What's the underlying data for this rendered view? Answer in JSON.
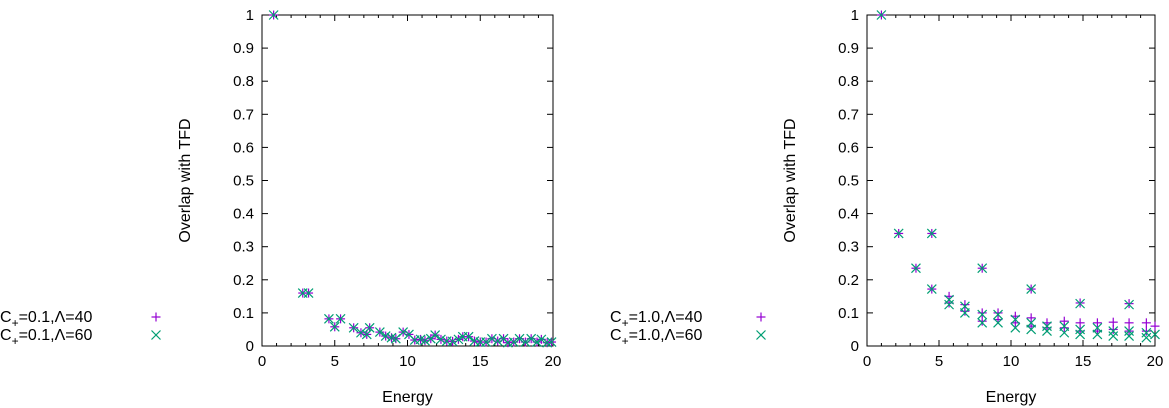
{
  "colors": {
    "series1": "#9400d3",
    "series2": "#009e73",
    "overlap": "#3a6f9c",
    "axis": "#000000"
  },
  "chart_data": [
    {
      "type": "scatter",
      "xlabel": "Energy",
      "ylabel": "Overlap with TFD",
      "xlim": [
        0,
        20
      ],
      "ylim": [
        0,
        1
      ],
      "xticks": [
        "0",
        "5",
        "10",
        "15",
        "20"
      ],
      "yticks": [
        "0",
        "0.1",
        "0.2",
        "0.3",
        "0.4",
        "0.5",
        "0.6",
        "0.7",
        "0.8",
        "0.9",
        "1"
      ],
      "legend_position": "left-bottom",
      "series": [
        {
          "name": "C+=0.1,Λ=40",
          "name_parts": {
            "base": "C",
            "sub": "+",
            "rest": "=0.1,Λ=40"
          },
          "marker": "plus",
          "points": [
            [
              0.8,
              1.0
            ],
            [
              2.8,
              0.16
            ],
            [
              3.2,
              0.16
            ],
            [
              4.6,
              0.082
            ],
            [
              5,
              0.058
            ],
            [
              5.4,
              0.082
            ],
            [
              6.3,
              0.055
            ],
            [
              6.8,
              0.04
            ],
            [
              7.2,
              0.035
            ],
            [
              7.4,
              0.055
            ],
            [
              8.1,
              0.042
            ],
            [
              8.5,
              0.03
            ],
            [
              8.9,
              0.025
            ],
            [
              9.2,
              0.022
            ],
            [
              9.7,
              0.042
            ],
            [
              10.1,
              0.035
            ],
            [
              10.5,
              0.018
            ],
            [
              10.9,
              0.02
            ],
            [
              11.2,
              0.016
            ],
            [
              11.6,
              0.022
            ],
            [
              11.9,
              0.033
            ],
            [
              12.3,
              0.02
            ],
            [
              12.7,
              0.015
            ],
            [
              13.1,
              0.014
            ],
            [
              13.5,
              0.02
            ],
            [
              13.8,
              0.028
            ],
            [
              14.2,
              0.028
            ],
            [
              14.6,
              0.015
            ],
            [
              15,
              0.012
            ],
            [
              15.4,
              0.012
            ],
            [
              15.8,
              0.022
            ],
            [
              16.2,
              0.015
            ],
            [
              16.6,
              0.022
            ],
            [
              16.9,
              0.01
            ],
            [
              17.3,
              0.012
            ],
            [
              17.7,
              0.022
            ],
            [
              18.1,
              0.012
            ],
            [
              18.5,
              0.022
            ],
            [
              18.9,
              0.012
            ],
            [
              19.2,
              0.02
            ],
            [
              19.6,
              0.01
            ],
            [
              19.9,
              0.012
            ]
          ]
        },
        {
          "name": "C+=0.1,Λ=60",
          "name_parts": {
            "base": "C",
            "sub": "+",
            "rest": "=0.1,Λ=60"
          },
          "marker": "cross",
          "points": [
            [
              0.8,
              1.0
            ],
            [
              2.8,
              0.16
            ],
            [
              3.2,
              0.16
            ],
            [
              4.6,
              0.082
            ],
            [
              5,
              0.058
            ],
            [
              5.4,
              0.082
            ],
            [
              6.3,
              0.055
            ],
            [
              6.8,
              0.04
            ],
            [
              7.2,
              0.035
            ],
            [
              7.4,
              0.055
            ],
            [
              8.1,
              0.042
            ],
            [
              8.5,
              0.03
            ],
            [
              8.9,
              0.025
            ],
            [
              9.2,
              0.022
            ],
            [
              9.7,
              0.042
            ],
            [
              10.1,
              0.035
            ],
            [
              10.5,
              0.018
            ],
            [
              10.9,
              0.02
            ],
            [
              11.2,
              0.016
            ],
            [
              11.6,
              0.022
            ],
            [
              11.9,
              0.033
            ],
            [
              12.3,
              0.02
            ],
            [
              12.7,
              0.015
            ],
            [
              13.1,
              0.014
            ],
            [
              13.5,
              0.02
            ],
            [
              13.8,
              0.028
            ],
            [
              14.2,
              0.028
            ],
            [
              14.6,
              0.015
            ],
            [
              15,
              0.012
            ],
            [
              15.4,
              0.012
            ],
            [
              15.8,
              0.022
            ],
            [
              16.2,
              0.015
            ],
            [
              16.6,
              0.022
            ],
            [
              16.9,
              0.01
            ],
            [
              17.3,
              0.012
            ],
            [
              17.7,
              0.022
            ],
            [
              18.1,
              0.012
            ],
            [
              18.5,
              0.022
            ],
            [
              18.9,
              0.012
            ],
            [
              19.2,
              0.02
            ],
            [
              19.6,
              0.01
            ],
            [
              19.9,
              0.012
            ]
          ]
        }
      ]
    },
    {
      "type": "scatter",
      "xlabel": "Energy",
      "ylabel": "Overlap with TFD",
      "xlim": [
        0,
        20
      ],
      "ylim": [
        0,
        1
      ],
      "xticks": [
        "0",
        "5",
        "10",
        "15",
        "20"
      ],
      "yticks": [
        "0",
        "0.1",
        "0.2",
        "0.3",
        "0.4",
        "0.5",
        "0.6",
        "0.7",
        "0.8",
        "0.9",
        "1"
      ],
      "legend_position": "left-bottom",
      "series": [
        {
          "name": "C+=1.0,Λ=40",
          "name_parts": {
            "base": "C",
            "sub": "+",
            "rest": "=1.0,Λ=40"
          },
          "marker": "plus",
          "points": [
            [
              1,
              1.0
            ],
            [
              2.2,
              0.34
            ],
            [
              3.4,
              0.235
            ],
            [
              4.5,
              0.34
            ],
            [
              4.5,
              0.172
            ],
            [
              5.7,
              0.15
            ],
            [
              5.7,
              0.13
            ],
            [
              6.8,
              0.125
            ],
            [
              6.8,
              0.105
            ],
            [
              8,
              0.235
            ],
            [
              8,
              0.1
            ],
            [
              8,
              0.075
            ],
            [
              9.1,
              0.1
            ],
            [
              9.1,
              0.08
            ],
            [
              10.3,
              0.09
            ],
            [
              10.3,
              0.07
            ],
            [
              11.4,
              0.172
            ],
            [
              11.4,
              0.085
            ],
            [
              11.4,
              0.06
            ],
            [
              12.5,
              0.07
            ],
            [
              12.5,
              0.055
            ],
            [
              13.7,
              0.075
            ],
            [
              13.7,
              0.055
            ],
            [
              14.8,
              0.13
            ],
            [
              14.8,
              0.07
            ],
            [
              14.8,
              0.045
            ],
            [
              16,
              0.07
            ],
            [
              16,
              0.045
            ],
            [
              17.1,
              0.072
            ],
            [
              17.1,
              0.05
            ],
            [
              18.2,
              0.128
            ],
            [
              18.2,
              0.07
            ],
            [
              18.2,
              0.045
            ],
            [
              19.4,
              0.07
            ],
            [
              19.4,
              0.045
            ],
            [
              20,
              0.06
            ]
          ]
        },
        {
          "name": "C+=1.0,Λ=60",
          "name_parts": {
            "base": "C",
            "sub": "+",
            "rest": "=1.0,Λ=60"
          },
          "marker": "cross",
          "points": [
            [
              1,
              1.0
            ],
            [
              2.2,
              0.34
            ],
            [
              3.4,
              0.235
            ],
            [
              4.5,
              0.34
            ],
            [
              4.5,
              0.172
            ],
            [
              5.7,
              0.14
            ],
            [
              5.7,
              0.125
            ],
            [
              6.8,
              0.12
            ],
            [
              6.8,
              0.1
            ],
            [
              8,
              0.235
            ],
            [
              8,
              0.095
            ],
            [
              8,
              0.07
            ],
            [
              9.1,
              0.095
            ],
            [
              9.1,
              0.07
            ],
            [
              10.3,
              0.08
            ],
            [
              10.3,
              0.055
            ],
            [
              11.4,
              0.172
            ],
            [
              11.4,
              0.07
            ],
            [
              11.4,
              0.05
            ],
            [
              12.5,
              0.06
            ],
            [
              12.5,
              0.045
            ],
            [
              13.7,
              0.06
            ],
            [
              13.7,
              0.04
            ],
            [
              14.8,
              0.128
            ],
            [
              14.8,
              0.05
            ],
            [
              14.8,
              0.035
            ],
            [
              16,
              0.055
            ],
            [
              16,
              0.035
            ],
            [
              17.1,
              0.045
            ],
            [
              17.1,
              0.03
            ],
            [
              18.2,
              0.125
            ],
            [
              18.2,
              0.045
            ],
            [
              18.2,
              0.03
            ],
            [
              19.4,
              0.04
            ],
            [
              19.4,
              0.025
            ],
            [
              20,
              0.035
            ]
          ]
        }
      ]
    }
  ]
}
